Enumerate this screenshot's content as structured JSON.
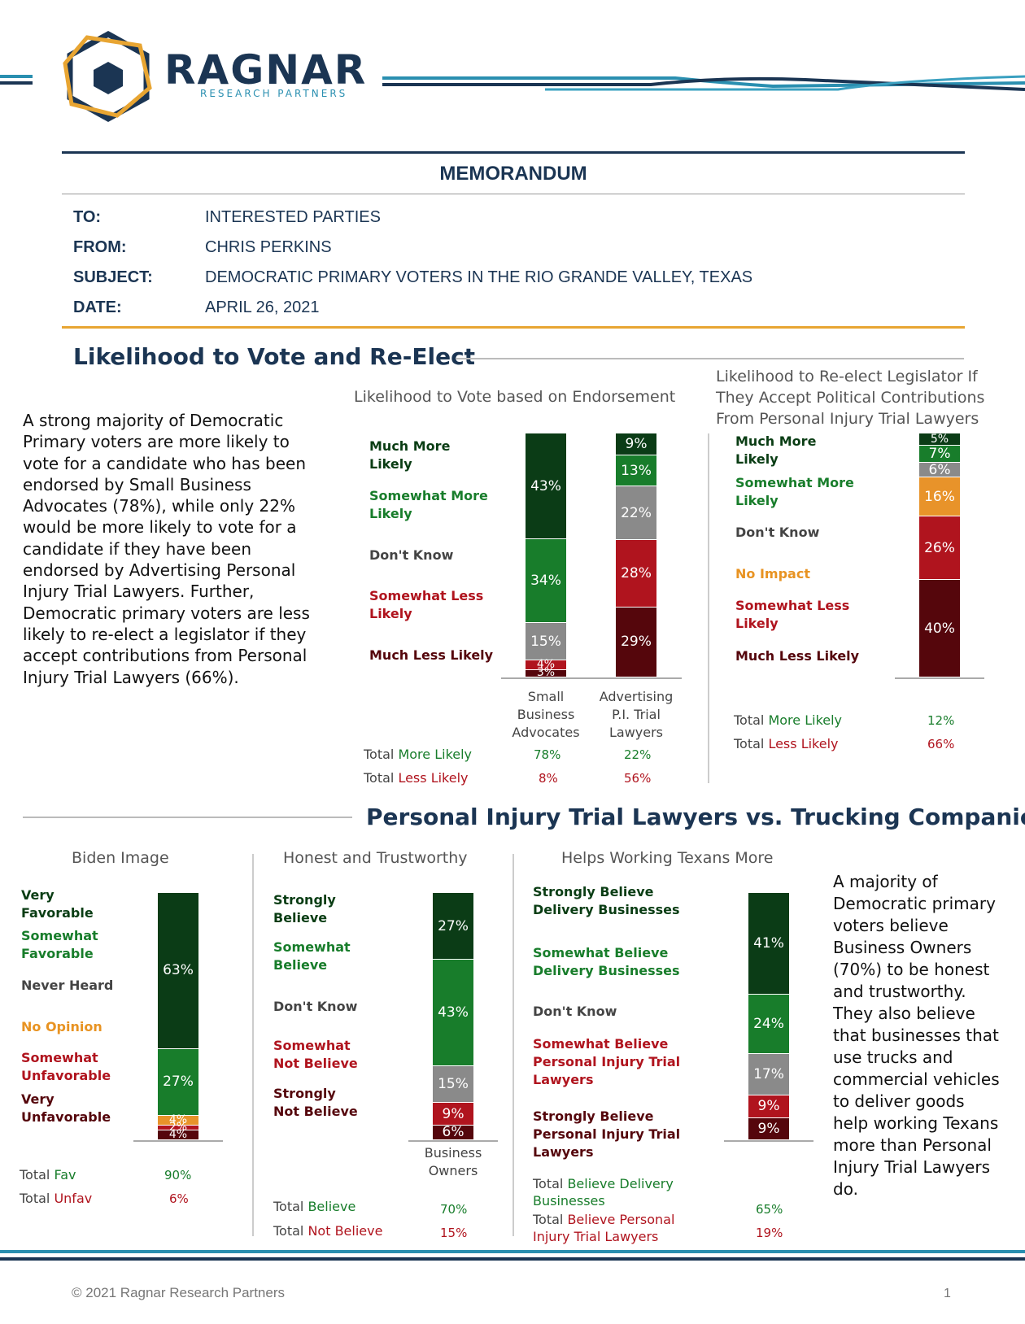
{
  "logo": {
    "name": "RAGNAR",
    "tagline": "RESEARCH PARTNERS"
  },
  "memo": {
    "title": "MEMORANDUM",
    "to_label": "TO:",
    "to": "INTERESTED PARTIES",
    "from_label": "FROM:",
    "from": "CHRIS PERKINS",
    "subject_label": "SUBJECT:",
    "subject": "DEMOCRATIC PRIMARY VOTERS IN THE RIO GRANDE VALLEY, TEXAS",
    "date_label": "DATE:",
    "date": "APRIL 26, 2021"
  },
  "section1": {
    "heading": "Likelihood to Vote and Re-Elect",
    "body": "A strong majority of Democratic Primary voters are more likely to vote for a candidate who has been endorsed by Small Business Advocates (78%), while only 22% would be more likely to vote for a candidate if they have been endorsed by Advertising Personal Injury Trial Lawyers. Further, Democratic primary voters are less likely to re-elect a legislator if they accept contributions from Personal Injury Trial Lawyers (66%)."
  },
  "section2": {
    "heading": "Personal Injury Trial Lawyers vs. Trucking Companies",
    "body": "A majority of Democratic primary voters believe Business Owners (70%) to be honest and trustworthy. They also believe that businesses that use trucks and commercial vehicles to deliver goods help working Texans more than Personal Injury Trial Lawyers do."
  },
  "colors": {
    "dark_green": "#0b3c16",
    "green": "#187d2b",
    "grey": "#8a8a8a",
    "orange": "#e8932a",
    "red": "#b0141e",
    "maroon": "#55060c",
    "navy": "#1b3553"
  },
  "chart_data": [
    {
      "type": "bar",
      "stacked": true,
      "title": "Likelihood to Vote based on Endorsement",
      "categories": [
        "Small Business Advocates",
        "Advertising P.I. Trial Lawyers"
      ],
      "series": [
        {
          "name": "Much More Likely",
          "values": [
            43,
            9
          ]
        },
        {
          "name": "Somewhat More Likely",
          "values": [
            34,
            13
          ]
        },
        {
          "name": "Don't Know",
          "values": [
            15,
            22
          ]
        },
        {
          "name": "Somewhat Less Likely",
          "values": [
            4,
            28
          ]
        },
        {
          "name": "Much Less Likely",
          "values": [
            3,
            29
          ]
        }
      ],
      "labels": {
        "much_more": "Much More Likely",
        "somewhat_more": "Somewhat More Likely",
        "dont_know": "Don't Know",
        "somewhat_less": "Somewhat Less Likely",
        "much_less": "Much Less Likely"
      },
      "cat_small": [
        "Small",
        "Business",
        "Advocates"
      ],
      "cat_adv": [
        "Advertising",
        "P.I. Trial",
        "Lawyers"
      ],
      "totals": {
        "more_prefix": "Total ",
        "more_word": "More Likely",
        "more_values": [
          "78%",
          "22%"
        ],
        "less_prefix": "Total ",
        "less_word": "Less Likely",
        "less_values": [
          "8%",
          "56%"
        ]
      }
    },
    {
      "type": "bar",
      "stacked": true,
      "title_lines": [
        "Likelihood to Re-elect Legislator If",
        "They Accept Political Contributions",
        "From Personal Injury Trial Lawyers"
      ],
      "categories": [
        ""
      ],
      "series": [
        {
          "name": "Much More Likely",
          "values": [
            5
          ]
        },
        {
          "name": "Somewhat More Likely",
          "values": [
            7
          ]
        },
        {
          "name": "Don't Know",
          "values": [
            6
          ]
        },
        {
          "name": "No Impact",
          "values": [
            16
          ]
        },
        {
          "name": "Somewhat Less Likely",
          "values": [
            26
          ]
        },
        {
          "name": "Much Less Likely",
          "values": [
            40
          ]
        }
      ],
      "labels": {
        "much_more": "Much More Likely",
        "somewhat_more": "Somewhat More Likely",
        "dont_know": "Don't Know",
        "no_impact": "No Impact",
        "somewhat_less": "Somewhat Less Likely",
        "much_less": "Much Less Likely"
      },
      "totals": {
        "more_prefix": "Total ",
        "more_word": "More Likely",
        "more_value": "12%",
        "less_prefix": "Total ",
        "less_word": "Less Likely",
        "less_value": "66%"
      }
    },
    {
      "type": "bar",
      "stacked": true,
      "title": "Biden Image",
      "categories": [
        ""
      ],
      "series": [
        {
          "name": "Very Favorable",
          "values": [
            63
          ]
        },
        {
          "name": "Somewhat Favorable",
          "values": [
            27
          ]
        },
        {
          "name": "Never Heard",
          "values": [
            0
          ]
        },
        {
          "name": "No Opinion",
          "values": [
            4
          ]
        },
        {
          "name": "Somewhat Unfavorable",
          "values": [
            2
          ]
        },
        {
          "name": "Very Unfavorable",
          "values": [
            4
          ]
        }
      ],
      "labels": {
        "very_fav": "Very Favorable",
        "somewhat_fav": "Somewhat Favorable",
        "never_heard": "Never Heard",
        "no_opinion": "No Opinion",
        "somewhat_unfav": "Somewhat Unfavorable",
        "very_unfav": "Very Unfavorable"
      },
      "totals": {
        "fav_prefix": "Total ",
        "fav_word": "Fav",
        "fav_value": "90%",
        "unfav_prefix": "Total ",
        "unfav_word": "Unfav",
        "unfav_value": "6%"
      }
    },
    {
      "type": "bar",
      "stacked": true,
      "title": "Honest and Trustworthy",
      "categories": [
        "Business Owners"
      ],
      "series": [
        {
          "name": "Strongly Believe",
          "values": [
            27
          ]
        },
        {
          "name": "Somewhat Believe",
          "values": [
            43
          ]
        },
        {
          "name": "Don't Know",
          "values": [
            15
          ]
        },
        {
          "name": "Somewhat Not Believe",
          "values": [
            9
          ]
        },
        {
          "name": "Strongly Not Believe",
          "values": [
            6
          ]
        }
      ],
      "labels": {
        "strongly": "Strongly Believe",
        "somewhat": "Somewhat Believe",
        "dont_know": "Don't Know",
        "somewhat_not": "Somewhat Not Believe",
        "strongly_not": "Strongly Not Believe"
      },
      "cat_lines": [
        "Business",
        "Owners"
      ],
      "totals": {
        "believe_prefix": "Total ",
        "believe_word": "Believe",
        "believe_value": "70%",
        "not_prefix": "Total ",
        "not_word": "Not Believe",
        "not_value": "15%"
      }
    },
    {
      "type": "bar",
      "stacked": true,
      "title": "Helps Working Texans More",
      "categories": [
        ""
      ],
      "series": [
        {
          "name": "Strongly Believe Delivery Businesses",
          "values": [
            41
          ]
        },
        {
          "name": "Somewhat Believe Delivery Businesses",
          "values": [
            24
          ]
        },
        {
          "name": "Don't Know",
          "values": [
            17
          ]
        },
        {
          "name": "Somewhat Believe Personal Injury Trial Lawyers",
          "values": [
            9
          ]
        },
        {
          "name": "Strongly Believe Personal Injury Trial Lawyers",
          "values": [
            9
          ]
        }
      ],
      "labels": {
        "strongly_del": "Strongly Believe Delivery Businesses",
        "somewhat_del": "Somewhat Believe Delivery Businesses",
        "dont_know": "Don't Know",
        "somewhat_pi": "Somewhat Believe Personal Injury Trial Lawyers",
        "strongly_pi": "Strongly Believe Personal Injury Trial Lawyers"
      },
      "totals": {
        "del_prefix": "Total ",
        "del_word": "Believe Delivery Businesses",
        "del_value": "65%",
        "pi_prefix": "Total ",
        "pi_word": "Believe Personal Injury Trial Lawyers",
        "pi_value": "19%"
      }
    }
  ],
  "footer": {
    "copyright": "© 2021 Ragnar Research Partners",
    "page": "1"
  }
}
